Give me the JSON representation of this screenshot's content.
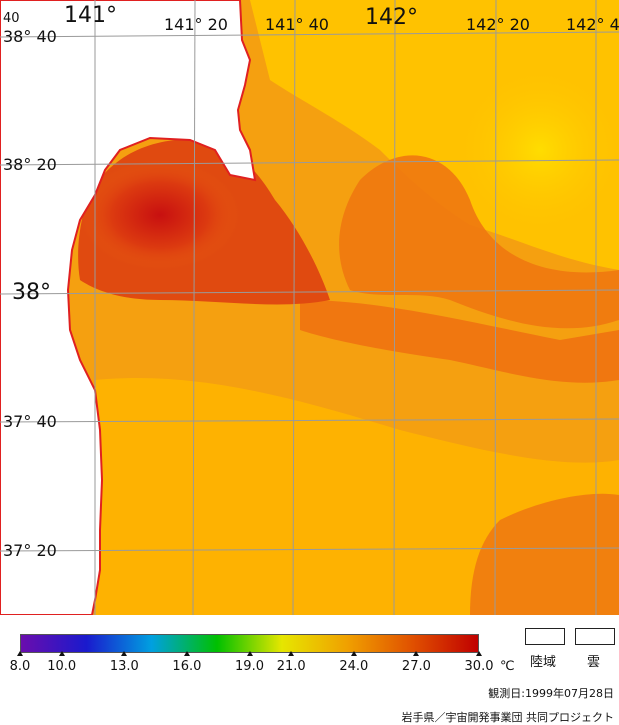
{
  "map": {
    "lon_labels": [
      "141°",
      "141° 20",
      "141° 40",
      "142°",
      "142° 20",
      "142° 4"
    ],
    "lat_labels": [
      "38° 40",
      "38° 20",
      "38°",
      "37° 40",
      "37° 20"
    ],
    "corner_label": "40"
  },
  "legend": {
    "ticks": [
      "8.0",
      "10.0",
      "13.0",
      "16.0",
      "19.0",
      "21.0",
      "24.0",
      "27.0",
      "30.0"
    ],
    "tick_values": [
      8,
      10,
      13,
      16,
      19,
      21,
      24,
      27,
      30
    ],
    "range": [
      8,
      30
    ],
    "unit": "℃",
    "land_label": "陸域",
    "cloud_label": "雲",
    "colors": [
      "#6a0dad",
      "#1a1acd",
      "#00a0e0",
      "#00c000",
      "#e6e600",
      "#f0a000",
      "#e05000",
      "#c00000"
    ]
  },
  "observation_date": "観測日:1999年07月28日",
  "credit": "岩手県／宇宙開発事業団 共同プロジェクト"
}
